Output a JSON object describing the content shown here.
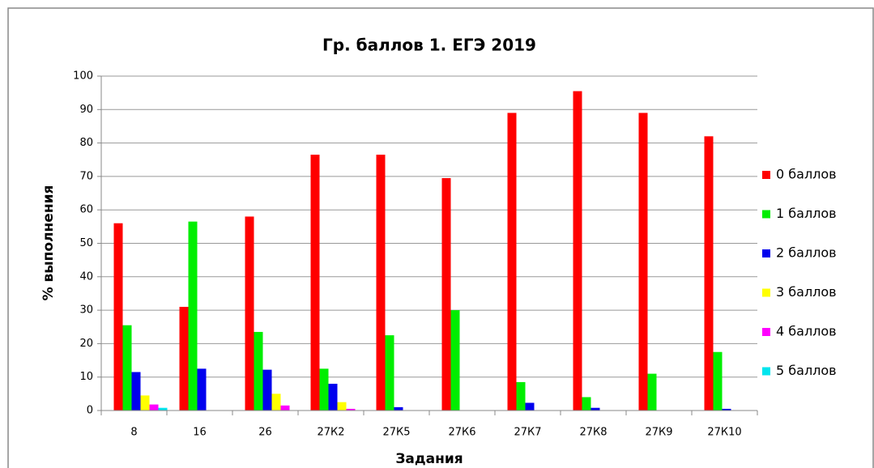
{
  "chart_data": {
    "type": "bar",
    "title": "Гр. баллов  1. ЕГЭ 2019",
    "x_label": "Задания",
    "y_label": "% выполнения",
    "categories": [
      "8",
      "16",
      "26",
      "27К2",
      "27К5",
      "27К6",
      "27К7",
      "27К8",
      "27К9",
      "27К10"
    ],
    "series": [
      {
        "name": "0 баллов",
        "color": "#ff0000",
        "values": [
          56,
          31,
          58,
          76.5,
          76.5,
          69.5,
          89,
          95.5,
          89,
          82
        ]
      },
      {
        "name": "1 баллов",
        "color": "#00ee00",
        "values": [
          25.5,
          56.5,
          23.5,
          12.5,
          22.5,
          30,
          8.5,
          4,
          11,
          17.5
        ]
      },
      {
        "name": "2 баллов",
        "color": "#0000ee",
        "values": [
          11.5,
          12.5,
          12.2,
          8,
          1,
          0,
          2.3,
          0.8,
          0,
          0.5
        ]
      },
      {
        "name": "3 баллов",
        "color": "#ffff00",
        "values": [
          4.5,
          0,
          5,
          2.5,
          0,
          0,
          0,
          0,
          0,
          0
        ]
      },
      {
        "name": "4 баллов",
        "color": "#ff00ff",
        "values": [
          1.8,
          0,
          1.5,
          0.5,
          0,
          0,
          0,
          0,
          0,
          0
        ]
      },
      {
        "name": "5 баллов",
        "color": "#00e5ee",
        "values": [
          0.8,
          0,
          0,
          0,
          0,
          0,
          0,
          0,
          0,
          0
        ]
      }
    ],
    "ylim": [
      0,
      100
    ],
    "yticks": [
      0,
      10,
      20,
      30,
      40,
      50,
      60,
      70,
      80,
      90,
      100
    ],
    "grid": true,
    "legend": "right"
  }
}
